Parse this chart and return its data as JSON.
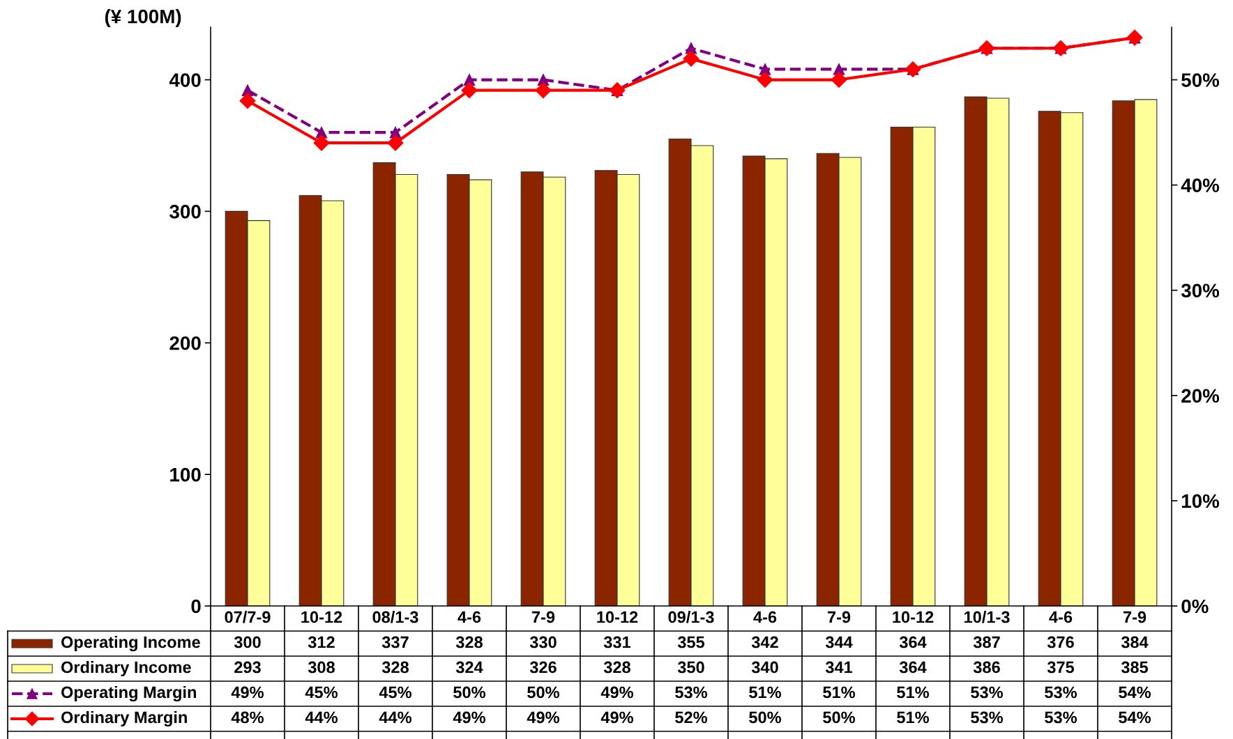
{
  "chart_data": {
    "type": "bar",
    "ylabel": "(¥ 100M)",
    "categories": [
      "07/7-9",
      "10-12",
      "08/1-3",
      "4-6",
      "7-9",
      "10-12",
      "09/1-3",
      "4-6",
      "7-9",
      "10-12",
      "10/1-3",
      "4-6",
      "7-9"
    ],
    "series": [
      {
        "name": "Operating Income",
        "color": "#8b2500",
        "values": [
          300,
          312,
          337,
          328,
          330,
          331,
          355,
          342,
          344,
          364,
          387,
          376,
          384
        ],
        "value_labels": [
          "300",
          "312",
          "337",
          "328",
          "330",
          "331",
          "355",
          "342",
          "344",
          "364",
          "387",
          "376",
          "384"
        ]
      },
      {
        "name": "Ordinary Income",
        "color": "#ffff99",
        "values": [
          293,
          308,
          328,
          324,
          326,
          328,
          350,
          340,
          341,
          364,
          386,
          375,
          385
        ],
        "value_labels": [
          "293",
          "308",
          "328",
          "324",
          "326",
          "328",
          "350",
          "340",
          "341",
          "364",
          "386",
          "375",
          "385"
        ]
      },
      {
        "name": "Operating Margin",
        "type": "line",
        "axis": "y2",
        "color": "#800080",
        "marker": "triangle",
        "line_style": "dashed",
        "values": [
          49,
          45,
          45,
          50,
          50,
          49,
          53,
          51,
          51,
          51,
          53,
          53,
          54
        ],
        "value_labels": [
          "49%",
          "45%",
          "45%",
          "50%",
          "50%",
          "49%",
          "53%",
          "51%",
          "51%",
          "51%",
          "53%",
          "53%",
          "54%"
        ]
      },
      {
        "name": "Ordinary Margin",
        "type": "line",
        "axis": "y2",
        "color": "#ff0000",
        "marker": "diamond",
        "line_style": "solid",
        "values": [
          48,
          44,
          44,
          49,
          49,
          49,
          52,
          50,
          50,
          51,
          53,
          53,
          54
        ],
        "value_labels": [
          "48%",
          "44%",
          "44%",
          "49%",
          "49%",
          "49%",
          "52%",
          "50%",
          "50%",
          "51%",
          "53%",
          "53%",
          "54%"
        ]
      }
    ],
    "ylim": [
      0,
      440
    ],
    "yticks": [
      0,
      100,
      200,
      300,
      400
    ],
    "y2lim": [
      0,
      55
    ],
    "y2ticks": [
      {
        "value": 0,
        "label": "0%"
      },
      {
        "value": 10,
        "label": "10%"
      },
      {
        "value": 20,
        "label": "20%"
      },
      {
        "value": 30,
        "label": "30%"
      },
      {
        "value": 40,
        "label": "40%"
      },
      {
        "value": 50,
        "label": "50%"
      }
    ],
    "grid": false,
    "legend": "bottom"
  }
}
